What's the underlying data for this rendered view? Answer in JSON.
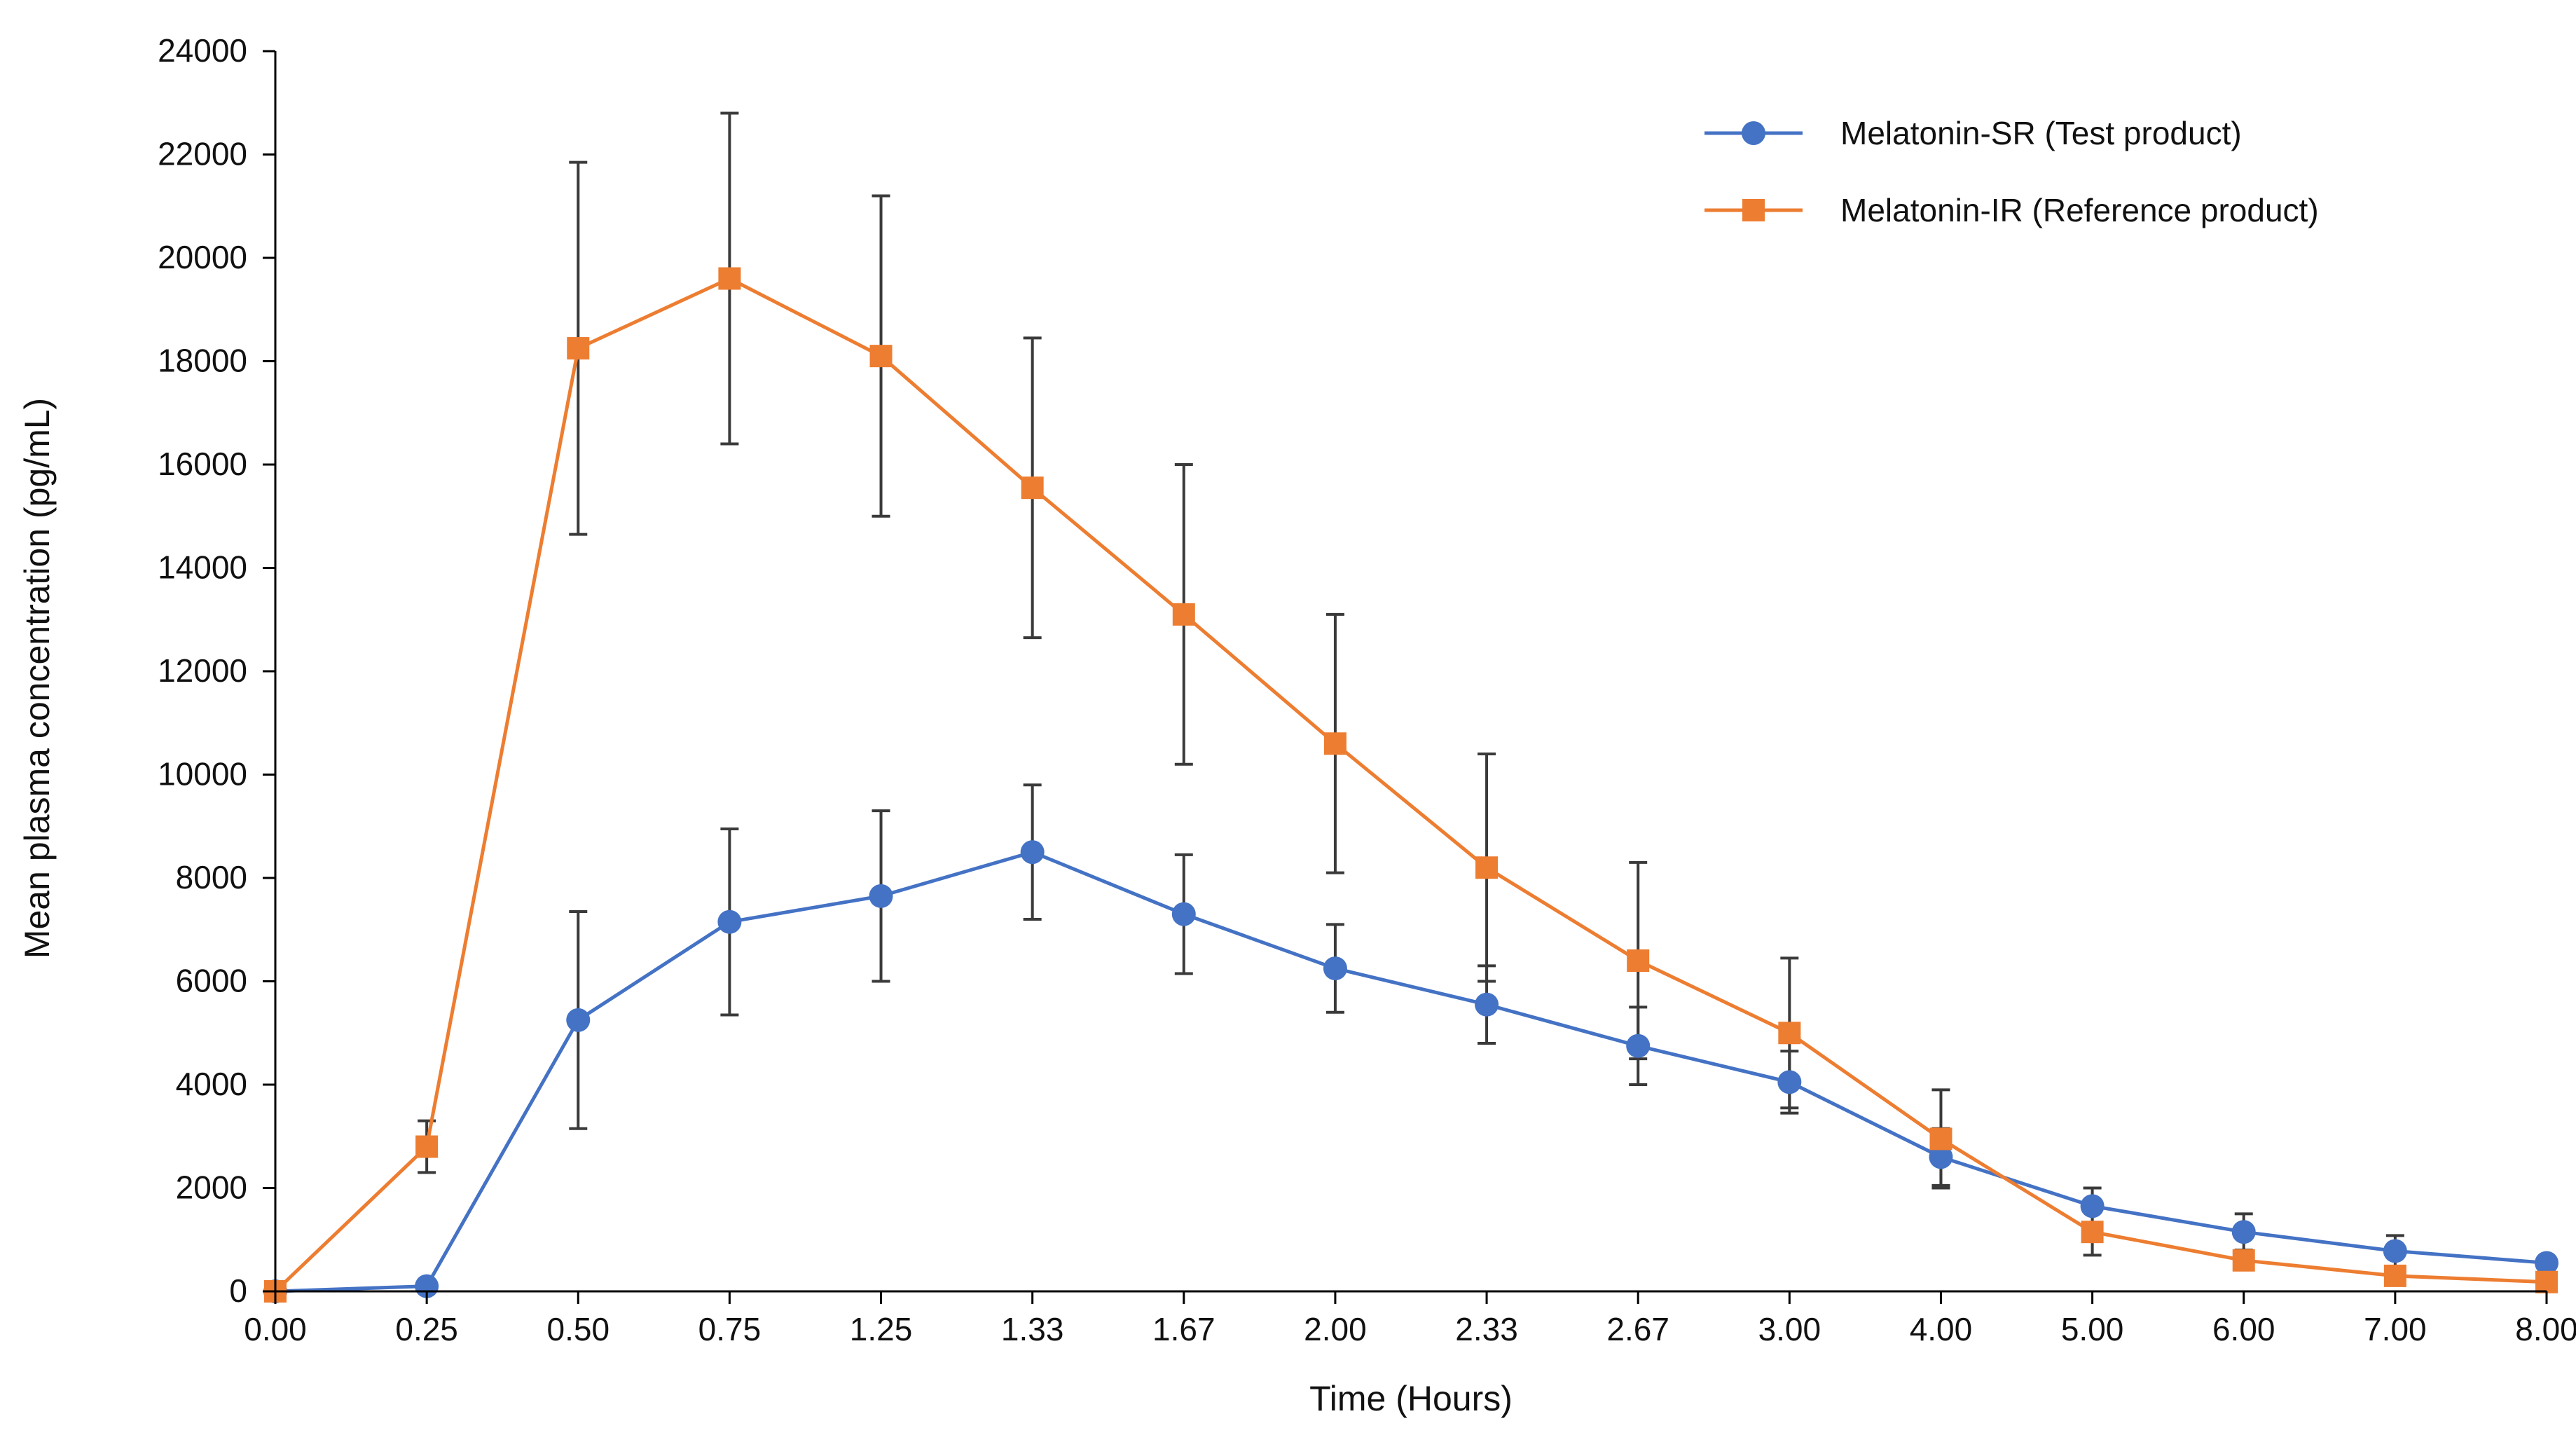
{
  "chart_data": {
    "type": "line",
    "title": "",
    "xlabel": "Time (Hours)",
    "ylabel": "Mean plasma concentration (pg/mL)",
    "ylim": [
      0,
      24000
    ],
    "y_ticks": [
      "0",
      "2000",
      "4000",
      "6000",
      "8000",
      "10000",
      "12000",
      "14000",
      "16000",
      "18000",
      "20000",
      "22000",
      "24000"
    ],
    "categories": [
      "0.00",
      "0.25",
      "0.50",
      "0.75",
      "1.25",
      "1.33",
      "1.67",
      "2.00",
      "2.33",
      "2.67",
      "3.00",
      "4.00",
      "5.00",
      "6.00",
      "7.00",
      "8.00"
    ],
    "grid": false,
    "legend_position": "top-right",
    "series": [
      {
        "name": "Melatonin-SR (Test product)",
        "color": "#4472C4",
        "marker": "circle",
        "values": [
          0,
          100,
          5250,
          7150,
          7650,
          8500,
          7300,
          6250,
          5550,
          4750,
          4050,
          2600,
          1650,
          1150,
          780,
          550
        ],
        "error": [
          0,
          0,
          2100,
          1800,
          1650,
          1300,
          1150,
          850,
          750,
          750,
          600,
          550,
          350,
          350,
          300,
          0
        ]
      },
      {
        "name": "Melatonin-IR (Reference product)",
        "color": "#ED7D31",
        "marker": "square",
        "values": [
          0,
          2800,
          18250,
          19600,
          18100,
          15550,
          13100,
          10600,
          8200,
          6400,
          5000,
          2950,
          1150,
          600,
          300,
          180
        ],
        "error": [
          0,
          500,
          3600,
          3200,
          3100,
          2900,
          2900,
          2500,
          2200,
          1900,
          1450,
          950,
          450,
          0,
          0,
          0
        ]
      }
    ]
  }
}
